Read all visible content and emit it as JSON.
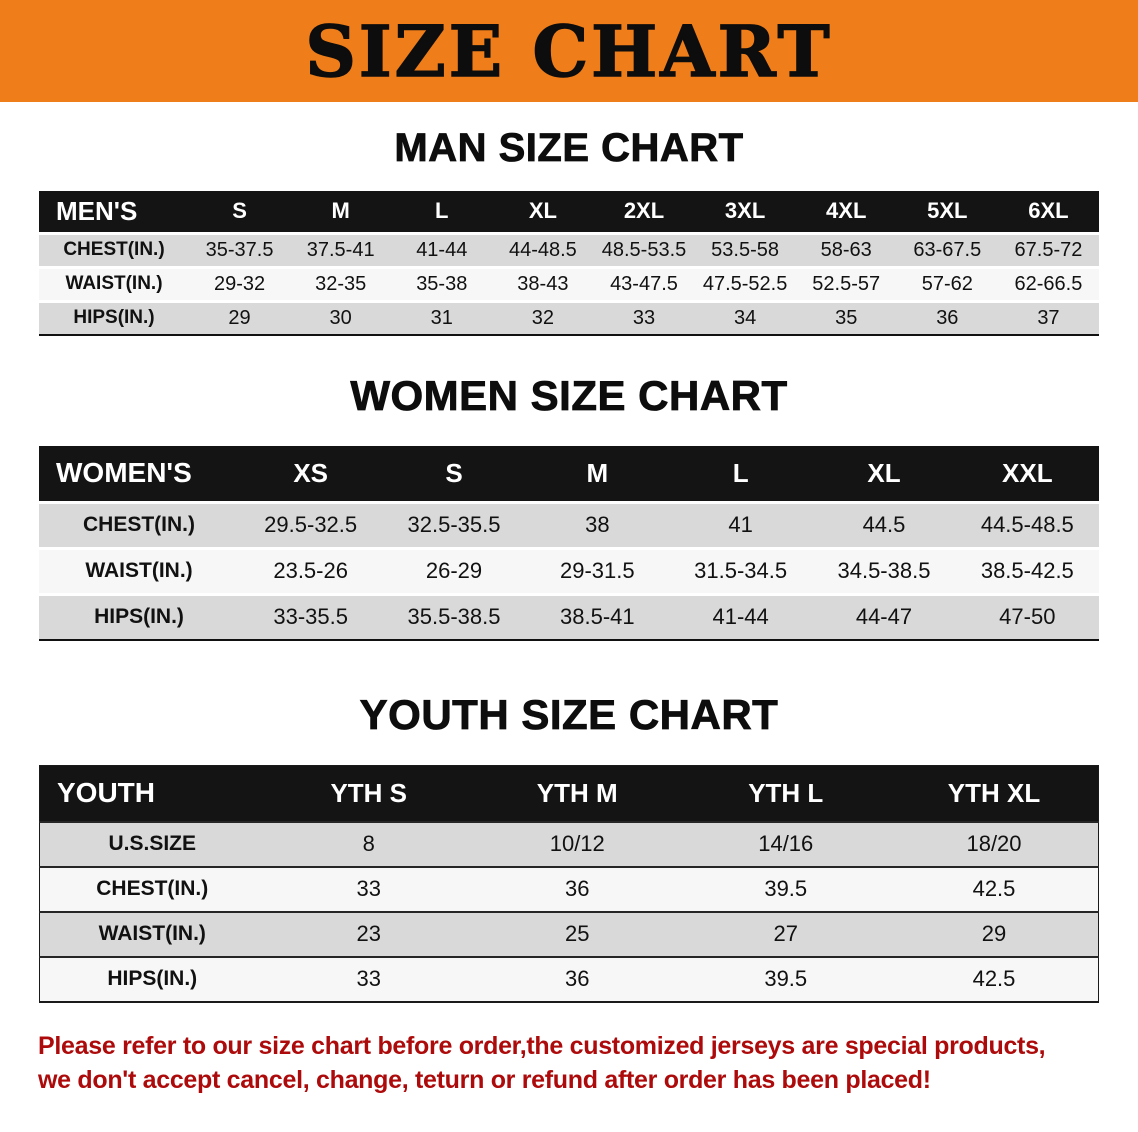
{
  "banner": {
    "title": "SIZE CHART"
  },
  "colors": {
    "banner_bg": "#ee7d1a",
    "header_bg": "#141414",
    "stripe": "#d9d9d9",
    "disclaimer_color": "#ad0b0b"
  },
  "sections": [
    {
      "id": "men",
      "heading": "MAN SIZE CHART",
      "table": {
        "header": [
          "MEN'S",
          "S",
          "M",
          "L",
          "XL",
          "2XL",
          "3XL",
          "4XL",
          "5XL",
          "6XL"
        ],
        "rows": [
          [
            "CHEST(IN.)",
            "35-37.5",
            "37.5-41",
            "41-44",
            "44-48.5",
            "48.5-53.5",
            "53.5-58",
            "58-63",
            "63-67.5",
            "67.5-72"
          ],
          [
            "WAIST(IN.)",
            "29-32",
            "32-35",
            "35-38",
            "38-43",
            "43-47.5",
            "47.5-52.5",
            "52.5-57",
            "57-62",
            "62-66.5"
          ],
          [
            "HIPS(IN.)",
            "29",
            "30",
            "31",
            "32",
            "33",
            "34",
            "35",
            "36",
            "37"
          ]
        ]
      }
    },
    {
      "id": "women",
      "heading": "WOMEN SIZE CHART",
      "table": {
        "header": [
          "WOMEN'S",
          "XS",
          "S",
          "M",
          "L",
          "XL",
          "XXL"
        ],
        "rows": [
          [
            "CHEST(IN.)",
            "29.5-32.5",
            "32.5-35.5",
            "38",
            "41",
            "44.5",
            "44.5-48.5"
          ],
          [
            "WAIST(IN.)",
            "23.5-26",
            "26-29",
            "29-31.5",
            "31.5-34.5",
            "34.5-38.5",
            "38.5-42.5"
          ],
          [
            "HIPS(IN.)",
            "33-35.5",
            "35.5-38.5",
            "38.5-41",
            "41-44",
            "44-47",
            "47-50"
          ]
        ]
      }
    },
    {
      "id": "youth",
      "heading": "YOUTH SIZE CHART",
      "table": {
        "header": [
          "YOUTH",
          "YTH S",
          "YTH M",
          "YTH L",
          "YTH XL"
        ],
        "rows": [
          [
            "U.S.SIZE",
            "8",
            "10/12",
            "14/16",
            "18/20"
          ],
          [
            "CHEST(IN.)",
            "33",
            "36",
            "39.5",
            "42.5"
          ],
          [
            "WAIST(IN.)",
            "23",
            "25",
            "27",
            "29"
          ],
          [
            "HIPS(IN.)",
            "33",
            "36",
            "39.5",
            "42.5"
          ]
        ]
      }
    }
  ],
  "disclaimer": {
    "lines": [
      "Please refer to our size chart before order,the customized jerseys are special products,",
      "we don't accept cancel, change, teturn or refund after order has been placed!"
    ]
  }
}
